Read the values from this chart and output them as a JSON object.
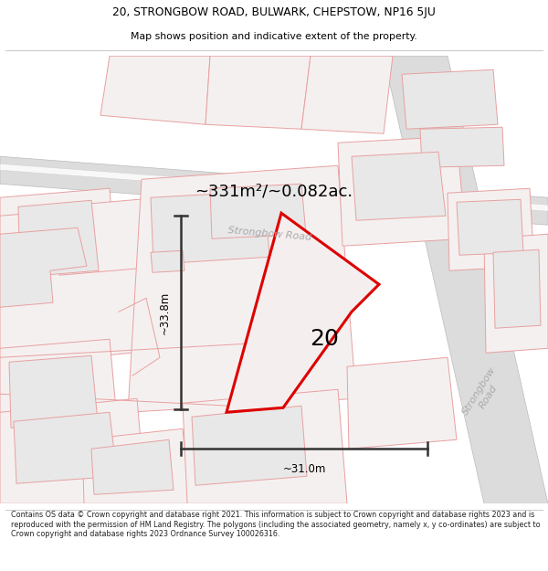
{
  "title_line1": "20, STRONGBOW ROAD, BULWARK, CHEPSTOW, NP16 5JU",
  "title_line2": "Map shows position and indicative extent of the property.",
  "footer_text": "Contains OS data © Crown copyright and database right 2021. This information is subject to Crown copyright and database rights 2023 and is reproduced with the permission of HM Land Registry. The polygons (including the associated geometry, namely x, y co-ordinates) are subject to Crown copyright and database rights 2023 Ordnance Survey 100026316.",
  "area_label": "~331m²/~0.082ac.",
  "property_number": "20",
  "dim_width": "~31.0m",
  "dim_height": "~33.8m",
  "road_label_upper": "Strongbow Road",
  "road_label_right": "Strongbow Road",
  "map_bg": "#ffffff",
  "building_fill": "#e8e8e8",
  "building_edge": "#e8a0a0",
  "road_outline": "#e8a0a0",
  "road_fill": "#f5f0f0",
  "property_fill": "#f0e8e8",
  "property_edge": "#dd0000",
  "road_gray_fill": "#dcdcdc",
  "road_gray_edge": "#bbbbbb"
}
